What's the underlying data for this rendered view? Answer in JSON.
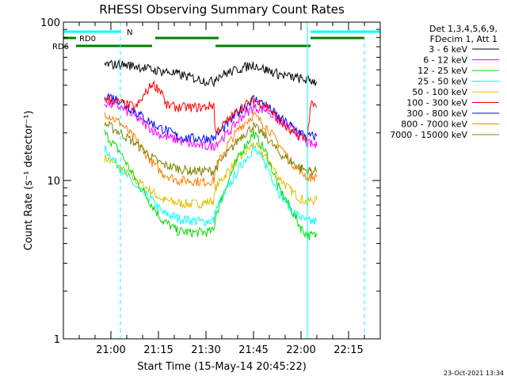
{
  "chart_data": {
    "type": "line",
    "title": "RHESSI Observing Summary Count Rates",
    "xlabel": "Start Time (15-May-14 20:45:22)",
    "ylabel": "Count Rate (s⁻¹ detector⁻¹)",
    "y_scale": "log",
    "ylim": [
      1,
      100
    ],
    "y_ticks": [
      {
        "value": 1,
        "label": "1"
      },
      {
        "value": 10,
        "label": "10"
      },
      {
        "value": 100,
        "label": "100"
      }
    ],
    "xlim_minutes": [
      0,
      100
    ],
    "x_ticks": [
      {
        "minute": 15,
        "label": "21:00"
      },
      {
        "minute": 30,
        "label": "21:15"
      },
      {
        "minute": 45,
        "label": "21:30"
      },
      {
        "minute": 60,
        "label": "21:45"
      },
      {
        "minute": 75,
        "label": "22:00"
      },
      {
        "minute": 90,
        "label": "22:15"
      }
    ],
    "legend_header": [
      "Det 1,3,4,5,6,9,",
      "FDecim 1, Att 1"
    ],
    "legend_position": "right",
    "x": [
      13,
      18,
      23,
      28,
      31.5,
      32,
      36,
      40,
      44,
      47.5,
      48,
      52,
      56,
      60,
      64,
      68,
      72,
      75,
      77,
      78,
      80
    ],
    "series": [
      {
        "name": "3 - 6 keV",
        "color": "#000000",
        "values": [
          54,
          54,
          53,
          50,
          49,
          49,
          47,
          45,
          43,
          42,
          45,
          48,
          51,
          54,
          50,
          47,
          45,
          44,
          43,
          43,
          42
        ]
      },
      {
        "name": "6 - 12 keV",
        "color": "#ff00ff",
        "values": [
          31,
          29,
          25,
          21,
          19,
          19,
          18,
          17,
          16.5,
          16.5,
          17,
          20,
          25,
          29,
          28,
          24,
          21,
          19,
          17,
          17,
          16.5
        ]
      },
      {
        "name": "12 - 25 keV",
        "color": "#00dd00",
        "values": [
          20,
          15,
          10,
          7,
          5.5,
          5.5,
          4.8,
          4.7,
          4.7,
          4.8,
          6,
          10,
          15,
          20,
          15,
          9,
          6.5,
          5,
          4.5,
          4.5,
          4.5
        ]
      },
      {
        "name": "25 - 50 keV",
        "color": "#00ffff",
        "values": [
          16,
          12,
          9,
          7.5,
          6.2,
          6.2,
          5.8,
          5.6,
          5.5,
          5.6,
          6.5,
          9,
          12.5,
          16,
          12.5,
          8.5,
          6.5,
          5.8,
          5.5,
          5.5,
          5.5
        ]
      },
      {
        "name": "50 - 100 keV",
        "color": "#e0c000",
        "values": [
          14,
          12,
          10,
          8.5,
          7.5,
          7.5,
          7.2,
          7.1,
          7.2,
          7.5,
          9,
          11.5,
          14,
          17,
          14,
          10.5,
          8.5,
          7.7,
          7.3,
          7.5,
          7.5
        ]
      },
      {
        "name": "100 - 300 keV",
        "color": "#ff0000",
        "values": [
          33,
          31,
          29,
          41,
          36,
          30,
          29,
          29,
          29,
          30,
          20,
          24,
          29,
          32,
          30,
          24,
          20,
          19,
          18.5,
          30,
          29
        ]
      },
      {
        "name": "300 - 800 keV",
        "color": "#0000ff",
        "values": [
          35,
          32,
          27,
          23,
          21,
          21,
          19,
          18.5,
          18.5,
          18.5,
          19,
          23,
          28,
          33,
          30,
          25,
          22,
          20,
          19,
          19,
          19
        ]
      },
      {
        "name": "800 - 7000 keV",
        "color": "#ff8000",
        "values": [
          27,
          23,
          18,
          13,
          11,
          11,
          10,
          10,
          9.8,
          10,
          12,
          17,
          22,
          26,
          22,
          17,
          13,
          11.5,
          10.5,
          10.5,
          10.5
        ]
      },
      {
        "name": "7000 - 15000 keV",
        "color": "#808000",
        "values": [
          23,
          20,
          17,
          14,
          12.5,
          12.5,
          12,
          11.5,
          11.5,
          11.5,
          12,
          15,
          19,
          22,
          19,
          15,
          13,
          12,
          11.5,
          11.5,
          11.5
        ]
      }
    ],
    "flags": [
      {
        "label": "N",
        "color": "#00ffff",
        "segments": [
          [
            0,
            18
          ],
          [
            78,
            100
          ]
        ]
      },
      {
        "label": "RD0",
        "color": "#008000",
        "segments": [
          [
            0,
            4
          ],
          [
            29,
            49
          ],
          [
            78,
            95
          ]
        ]
      },
      {
        "label": "RD6",
        "color": "#008000",
        "segments": [
          [
            4,
            28
          ],
          [
            48,
            78
          ]
        ]
      }
    ],
    "vertical_markers": [
      {
        "minute": 0,
        "color": "#00ffff",
        "style": "solid"
      },
      {
        "minute": 18,
        "color": "#00ffff",
        "style": "dashed"
      },
      {
        "minute": 77,
        "color": "#00ffff",
        "style": "solid"
      },
      {
        "minute": 95,
        "color": "#00ffff",
        "style": "dashed"
      }
    ]
  },
  "footer": {
    "timestamp": "23-Oct-2021 13:34"
  }
}
